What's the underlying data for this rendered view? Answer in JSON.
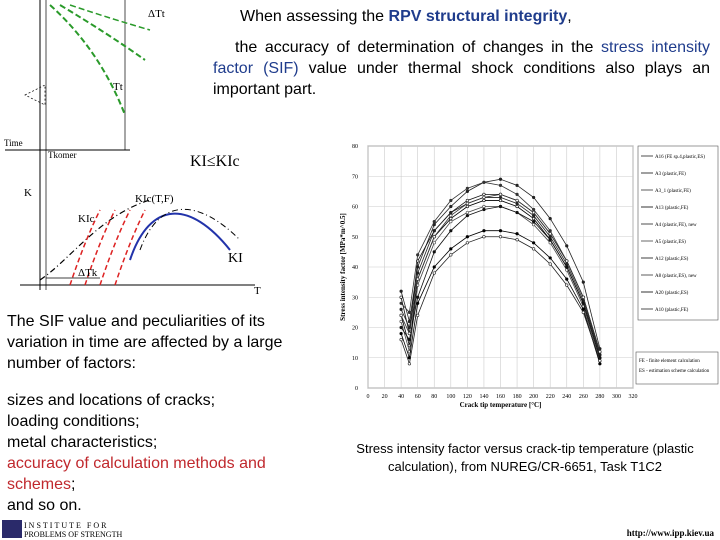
{
  "slide": {
    "intro": [
      "When assessing the ",
      "RPV structural integrity",
      ","
    ],
    "accuracy": [
      "the accuracy of determination of changes in the ",
      "stress intensity factor (SIF)",
      " value under thermal shock conditions also plays an important part."
    ],
    "sif_text": "The SIF value and peculiarities of its variation in time are affected by a large number of factors:",
    "factors": [
      "sizes and locations of cracks;",
      "loading conditions;",
      "metal characteristics;"
    ],
    "factor_highlight": [
      "accuracy of calculation methods and schemes",
      ";"
    ],
    "factor_last": "and so on.",
    "caption": "Stress intensity factor versus crack-tip temperature (plastic calculation), from NUREG/CR-6651, Task T1C2",
    "footer": {
      "institute": [
        "INSTITUTE FOR",
        "PROBLEMS OF STRENGTH"
      ],
      "url": "http://www.ipp.kiev.ua"
    }
  },
  "diagram": {
    "labels": [
      "ΔTt",
      "Tt",
      "Time",
      "Tkomer",
      "KI≤KIc",
      "K",
      "KIc(T,F)",
      "KIc",
      "KI",
      "ΔTk",
      "T"
    ]
  },
  "chart_data": {
    "type": "line",
    "xlabel": "Crack tip temperature [°C]",
    "ylabel": "Stress intensity factor [MPa*m^0.5]",
    "x": [
      40,
      50,
      60,
      80,
      100,
      120,
      140,
      160,
      180,
      200,
      220,
      240,
      260,
      280
    ],
    "xlim": [
      0,
      320
    ],
    "xticks": [
      0,
      20,
      40,
      60,
      80,
      100,
      120,
      140,
      160,
      180,
      200,
      220,
      240,
      260,
      280,
      300,
      320
    ],
    "ylim": [
      0,
      80
    ],
    "yticks": [
      0,
      10,
      20,
      30,
      40,
      50,
      60,
      70,
      80
    ],
    "grid": true,
    "series": [
      {
        "name": "A16 (FE sp.4,plastic,ES)",
        "color": "#222222",
        "values": [
          32,
          22,
          40,
          54,
          60,
          65,
          68,
          69,
          67,
          63,
          56,
          47,
          35,
          13
        ]
      },
      {
        "name": "A3 (plastic,FE)",
        "color": "#111111",
        "values": [
          30,
          18,
          42,
          52,
          58,
          62,
          64,
          64,
          62,
          58,
          51,
          42,
          30,
          12
        ]
      },
      {
        "name": "A3_1 (plastic,FE)",
        "color": "#333333",
        "values": [
          28,
          25,
          44,
          55,
          62,
          66,
          68,
          67,
          64,
          59,
          52,
          42,
          30,
          11
        ]
      },
      {
        "name": "A13 (plastic,FE)",
        "color": "#000000",
        "values": [
          24,
          14,
          36,
          50,
          56,
          60,
          62,
          62,
          60,
          56,
          49,
          40,
          28,
          10
        ]
      },
      {
        "name": "A4 (plastic,FE), new",
        "color": "#222222",
        "values": [
          26,
          20,
          38,
          52,
          58,
          61,
          63,
          63,
          61,
          57,
          50,
          41,
          29,
          11
        ]
      },
      {
        "name": "A5 (plastic,ES)",
        "color": "#444444",
        "values": [
          22,
          12,
          34,
          48,
          55,
          58,
          60,
          60,
          58,
          54,
          48,
          39,
          27,
          9
        ]
      },
      {
        "name": "A12 (plastic,ES)",
        "color": "#111111",
        "values": [
          20,
          16,
          30,
          45,
          52,
          57,
          59,
          60,
          58,
          55,
          49,
          40,
          28,
          10
        ]
      },
      {
        "name": "A8 (plastic,ES), new",
        "color": "#333333",
        "values": [
          24,
          18,
          36,
          50,
          57,
          61,
          63,
          64,
          62,
          58,
          51,
          42,
          30,
          12
        ]
      },
      {
        "name": "A20 (plastic,ES)",
        "color": "#000000",
        "values": [
          18,
          10,
          28,
          40,
          46,
          50,
          52,
          52,
          51,
          48,
          43,
          36,
          26,
          8
        ]
      },
      {
        "name": "A10 (plastic,FE)",
        "color": "#222222",
        "values": [
          16,
          8,
          24,
          38,
          44,
          48,
          50,
          50,
          49,
          46,
          41,
          34,
          25,
          9
        ]
      }
    ],
    "notes": [
      "FE - finite element calculation",
      "ES - estimation scheme calculation"
    ]
  }
}
